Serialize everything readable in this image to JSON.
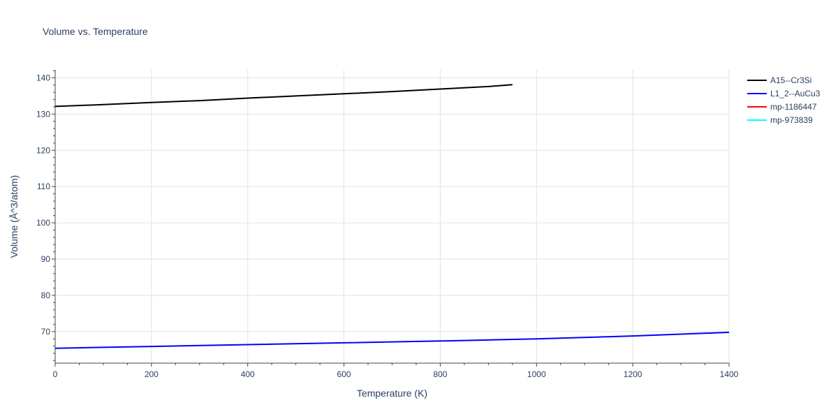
{
  "chart_data": {
    "type": "line",
    "title": "Volume vs. Temperature",
    "xlabel": "Temperature (K)",
    "ylabel": "Volume (Å^3/atom)",
    "xlim": [
      0,
      1400
    ],
    "ylim": [
      61.3,
      142.2
    ],
    "x_ticks": [
      0,
      200,
      400,
      600,
      800,
      1000,
      1200,
      1400
    ],
    "y_ticks": [
      70,
      80,
      90,
      100,
      110,
      120,
      130,
      140
    ],
    "grid": true,
    "legend_position": "top-right outside",
    "series": [
      {
        "name": "A15--Cr3Si",
        "color": "#000000",
        "x": [
          0,
          100,
          200,
          300,
          400,
          500,
          600,
          700,
          800,
          900,
          950
        ],
        "y": [
          132.1,
          132.6,
          133.2,
          133.7,
          134.4,
          135.0,
          135.6,
          136.2,
          136.9,
          137.6,
          138.1
        ]
      },
      {
        "name": "L1_2--AuCu3",
        "color": "#0000ff",
        "x": [
          0,
          200,
          400,
          600,
          800,
          1000,
          1200,
          1400
        ],
        "y": [
          65.4,
          65.9,
          66.4,
          66.9,
          67.4,
          68.0,
          68.8,
          69.8
        ]
      },
      {
        "name": "mp-1186447",
        "color": "#ff0000",
        "x": [],
        "y": []
      },
      {
        "name": "mp-973839",
        "color": "#00ffff",
        "x": [],
        "y": []
      }
    ]
  }
}
